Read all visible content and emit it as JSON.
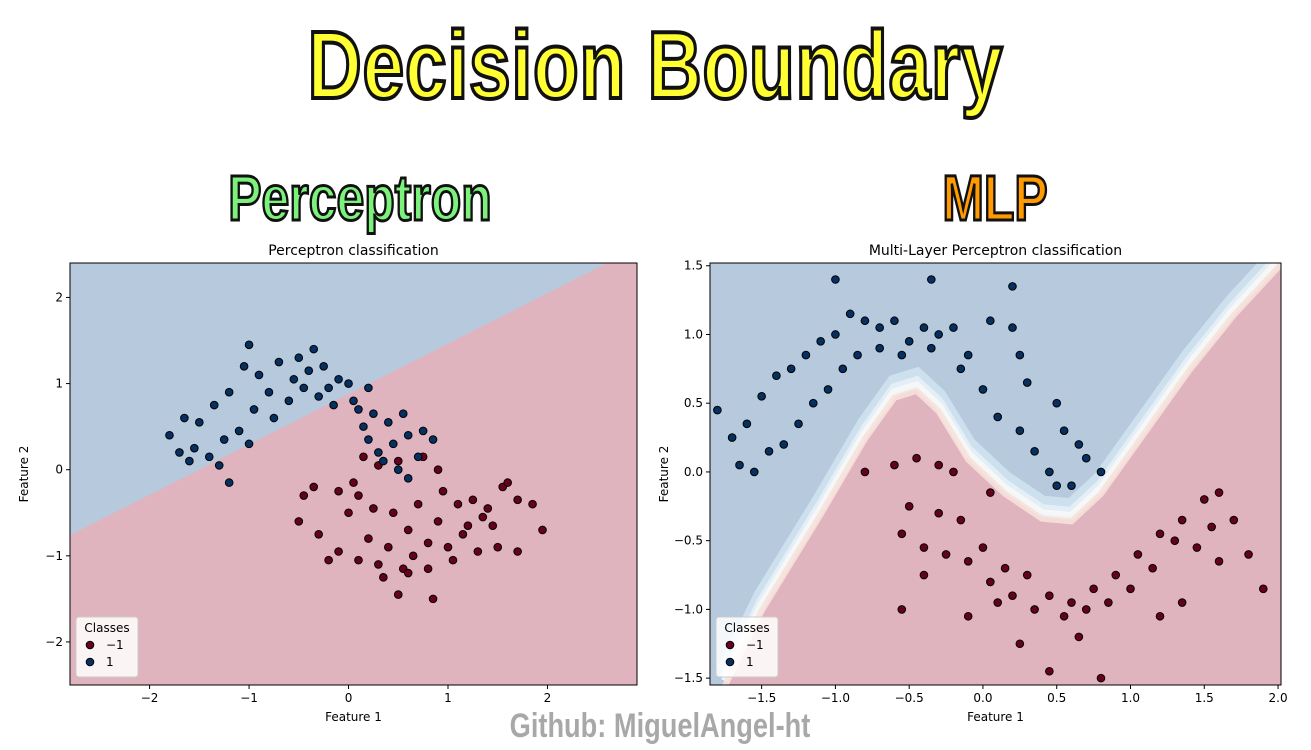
{
  "heading": "Decision Boundary",
  "left_label": "Perceptron",
  "right_label": "MLP",
  "footer": "Github: MiguelAngel-ht",
  "colors": {
    "class_neg": "#67001f",
    "class_pos": "#053061",
    "region_neg": "#e0b4be",
    "region_pos": "#b6c9dd",
    "title_fill": "#ffff33",
    "perceptron_fill": "#7cf27c",
    "mlp_fill": "#ff9a00"
  },
  "chart_data": [
    {
      "type": "scatter",
      "title": "Perceptron classification",
      "xlabel": "Feature 1",
      "ylabel": "Feature 2",
      "xlim": [
        -2.8,
        2.9
      ],
      "ylim": [
        -2.5,
        2.4
      ],
      "xticks": [
        -2,
        -1,
        0,
        1,
        2
      ],
      "yticks": [
        -2,
        -1,
        0,
        1,
        2
      ],
      "xtick_labels": [
        "−2",
        "−1",
        "0",
        "1",
        "2"
      ],
      "ytick_labels": [
        "−2",
        "−1",
        "0",
        "1",
        "2"
      ],
      "boundary_line": [
        [
          -2.8,
          -0.76
        ],
        [
          2.6,
          2.4
        ]
      ],
      "legend": {
        "title": "Classes",
        "position": "lower-left",
        "entries": [
          "−1",
          "1"
        ]
      },
      "grid": false,
      "series": [
        {
          "name": "−1",
          "points": [
            [
              0.15,
              0.15
            ],
            [
              0.3,
              0.05
            ],
            [
              0.5,
              0.1
            ],
            [
              0.75,
              0.15
            ],
            [
              0.9,
              0.0
            ],
            [
              -0.1,
              -0.25
            ],
            [
              0.1,
              -0.3
            ],
            [
              0.25,
              -0.45
            ],
            [
              0.45,
              -0.5
            ],
            [
              0.6,
              -0.7
            ],
            [
              0.8,
              -0.85
            ],
            [
              1.0,
              -0.9
            ],
            [
              1.2,
              -0.65
            ],
            [
              1.4,
              -0.45
            ],
            [
              1.55,
              -0.2
            ],
            [
              1.7,
              -0.35
            ],
            [
              1.85,
              -0.4
            ],
            [
              1.95,
              -0.7
            ],
            [
              1.7,
              -0.95
            ],
            [
              -0.5,
              -0.6
            ],
            [
              -0.3,
              -0.75
            ],
            [
              -0.1,
              -0.95
            ],
            [
              0.1,
              -1.05
            ],
            [
              0.3,
              -1.1
            ],
            [
              0.55,
              -1.15
            ],
            [
              0.8,
              -1.15
            ],
            [
              1.05,
              -1.05
            ],
            [
              1.3,
              -0.95
            ],
            [
              1.45,
              -0.65
            ],
            [
              -0.35,
              -0.2
            ],
            [
              0.0,
              -0.5
            ],
            [
              0.2,
              -0.8
            ],
            [
              0.4,
              -0.9
            ],
            [
              0.65,
              -1.0
            ],
            [
              0.9,
              -0.6
            ],
            [
              1.1,
              -0.4
            ],
            [
              1.25,
              -0.35
            ],
            [
              1.6,
              -0.15
            ],
            [
              1.5,
              -0.9
            ],
            [
              0.5,
              -1.45
            ],
            [
              0.85,
              -1.5
            ],
            [
              -0.2,
              -1.05
            ],
            [
              0.35,
              -1.25
            ],
            [
              0.6,
              -1.2
            ],
            [
              1.15,
              -0.75
            ],
            [
              1.35,
              -0.55
            ],
            [
              -0.45,
              -0.3
            ],
            [
              0.05,
              -0.15
            ],
            [
              0.7,
              -0.4
            ],
            [
              0.95,
              -0.25
            ]
          ]
        },
        {
          "name": "1",
          "points": [
            [
              -1.8,
              0.4
            ],
            [
              -1.65,
              0.6
            ],
            [
              -1.5,
              0.55
            ],
            [
              -1.35,
              0.75
            ],
            [
              -1.2,
              0.9
            ],
            [
              -1.05,
              1.2
            ],
            [
              -0.9,
              1.1
            ],
            [
              -0.7,
              1.25
            ],
            [
              -0.55,
              1.05
            ],
            [
              -0.4,
              1.15
            ],
            [
              -0.25,
              1.2
            ],
            [
              -0.1,
              1.05
            ],
            [
              0.0,
              1.0
            ],
            [
              0.2,
              0.95
            ],
            [
              -1.7,
              0.2
            ],
            [
              -1.55,
              0.25
            ],
            [
              -1.4,
              0.15
            ],
            [
              -1.25,
              0.35
            ],
            [
              -1.1,
              0.45
            ],
            [
              -0.95,
              0.7
            ],
            [
              -0.8,
              0.9
            ],
            [
              -0.6,
              0.8
            ],
            [
              -0.45,
              0.95
            ],
            [
              -0.3,
              0.85
            ],
            [
              -0.15,
              0.75
            ],
            [
              0.1,
              0.7
            ],
            [
              0.25,
              0.65
            ],
            [
              0.4,
              0.55
            ],
            [
              0.55,
              0.65
            ],
            [
              0.2,
              0.35
            ],
            [
              0.3,
              0.2
            ],
            [
              0.45,
              0.3
            ],
            [
              0.6,
              0.4
            ],
            [
              0.75,
              0.45
            ],
            [
              0.5,
              0.0
            ],
            [
              0.6,
              -0.1
            ],
            [
              0.35,
              0.1
            ],
            [
              0.15,
              0.5
            ],
            [
              0.7,
              0.15
            ],
            [
              0.85,
              0.35
            ],
            [
              -1.2,
              -0.15
            ],
            [
              -1.3,
              0.05
            ],
            [
              -1.6,
              0.1
            ],
            [
              -1.0,
              0.3
            ],
            [
              -0.75,
              0.6
            ],
            [
              -0.2,
              0.95
            ],
            [
              0.05,
              0.8
            ],
            [
              -0.5,
              1.3
            ],
            [
              -0.35,
              1.4
            ],
            [
              -1.0,
              1.45
            ]
          ]
        }
      ]
    },
    {
      "type": "scatter",
      "title": "Multi-Layer Perceptron classification",
      "xlabel": "Feature 1",
      "ylabel": "Feature 2",
      "xlim": [
        -1.85,
        2.02
      ],
      "ylim": [
        -1.55,
        1.52
      ],
      "xticks": [
        -1.5,
        -1.0,
        -0.5,
        0.0,
        0.5,
        1.0,
        1.5,
        2.0
      ],
      "yticks": [
        -1.5,
        -1.0,
        -0.5,
        0.0,
        0.5,
        1.0,
        1.5
      ],
      "xtick_labels": [
        "−1.5",
        "−1.0",
        "−0.5",
        "0.0",
        "0.5",
        "1.0",
        "1.5",
        "2.0"
      ],
      "ytick_labels": [
        "−1.5",
        "−1.0",
        "−0.5",
        "0.0",
        "0.5",
        "1.0",
        "1.5"
      ],
      "boundary_curve": [
        [
          -1.75,
          -1.55
        ],
        [
          -1.5,
          -1.0
        ],
        [
          -1.1,
          -0.3
        ],
        [
          -0.8,
          0.25
        ],
        [
          -0.6,
          0.55
        ],
        [
          -0.45,
          0.6
        ],
        [
          -0.3,
          0.45
        ],
        [
          -0.1,
          0.1
        ],
        [
          0.15,
          -0.15
        ],
        [
          0.4,
          -0.33
        ],
        [
          0.6,
          -0.35
        ],
        [
          0.8,
          -0.15
        ],
        [
          1.1,
          0.3
        ],
        [
          1.4,
          0.75
        ],
        [
          1.7,
          1.15
        ],
        [
          2.02,
          1.52
        ]
      ],
      "legend": {
        "title": "Classes",
        "position": "lower-left",
        "entries": [
          "−1",
          "1"
        ]
      },
      "grid": false,
      "series": [
        {
          "name": "−1",
          "points": [
            [
              -0.8,
              0.0
            ],
            [
              -0.6,
              0.05
            ],
            [
              -0.45,
              0.1
            ],
            [
              -0.3,
              0.05
            ],
            [
              -0.2,
              0.0
            ],
            [
              -0.5,
              -0.25
            ],
            [
              -0.3,
              -0.3
            ],
            [
              -0.15,
              -0.35
            ],
            [
              0.0,
              -0.55
            ],
            [
              0.15,
              -0.7
            ],
            [
              0.3,
              -0.75
            ],
            [
              0.45,
              -0.9
            ],
            [
              0.6,
              -0.95
            ],
            [
              0.75,
              -0.85
            ],
            [
              0.9,
              -0.75
            ],
            [
              1.05,
              -0.6
            ],
            [
              1.2,
              -0.45
            ],
            [
              1.35,
              -0.35
            ],
            [
              1.5,
              -0.2
            ],
            [
              1.6,
              -0.15
            ],
            [
              -0.55,
              -0.45
            ],
            [
              -0.4,
              -0.55
            ],
            [
              -0.25,
              -0.6
            ],
            [
              -0.1,
              -0.65
            ],
            [
              0.05,
              -0.8
            ],
            [
              0.2,
              -0.9
            ],
            [
              0.35,
              -1.0
            ],
            [
              0.55,
              -1.05
            ],
            [
              0.7,
              -1.0
            ],
            [
              0.85,
              -0.95
            ],
            [
              1.0,
              -0.85
            ],
            [
              1.15,
              -0.7
            ],
            [
              1.3,
              -0.5
            ],
            [
              1.45,
              -0.55
            ],
            [
              1.55,
              -0.4
            ],
            [
              1.7,
              -0.35
            ],
            [
              1.8,
              -0.6
            ],
            [
              1.9,
              -0.85
            ],
            [
              -0.55,
              -1.0
            ],
            [
              -0.1,
              -1.05
            ],
            [
              0.1,
              -0.95
            ],
            [
              0.25,
              -1.25
            ],
            [
              0.45,
              -1.45
            ],
            [
              0.65,
              -1.2
            ],
            [
              0.8,
              -1.5
            ],
            [
              1.2,
              -1.05
            ],
            [
              1.35,
              -0.95
            ],
            [
              1.6,
              -0.65
            ],
            [
              -0.4,
              -0.75
            ],
            [
              0.05,
              -0.15
            ]
          ]
        },
        {
          "name": "1",
          "points": [
            [
              -1.8,
              0.45
            ],
            [
              -1.7,
              0.25
            ],
            [
              -1.6,
              0.35
            ],
            [
              -1.5,
              0.55
            ],
            [
              -1.4,
              0.7
            ],
            [
              -1.3,
              0.75
            ],
            [
              -1.2,
              0.85
            ],
            [
              -1.1,
              0.95
            ],
            [
              -1.0,
              1.0
            ],
            [
              -0.9,
              1.15
            ],
            [
              -0.8,
              1.1
            ],
            [
              -0.7,
              1.05
            ],
            [
              -0.6,
              1.1
            ],
            [
              -0.5,
              0.95
            ],
            [
              -0.4,
              1.05
            ],
            [
              -0.3,
              1.0
            ],
            [
              -0.2,
              1.05
            ],
            [
              -0.1,
              0.85
            ],
            [
              0.05,
              1.1
            ],
            [
              0.2,
              1.05
            ],
            [
              -1.65,
              0.05
            ],
            [
              -1.55,
              0.0
            ],
            [
              -1.45,
              0.15
            ],
            [
              -1.35,
              0.2
            ],
            [
              -1.25,
              0.35
            ],
            [
              -1.15,
              0.5
            ],
            [
              -1.05,
              0.6
            ],
            [
              -0.95,
              0.75
            ],
            [
              -0.85,
              0.85
            ],
            [
              -0.7,
              0.9
            ],
            [
              -0.55,
              0.85
            ],
            [
              -0.35,
              0.9
            ],
            [
              -0.15,
              0.75
            ],
            [
              0.0,
              0.6
            ],
            [
              0.1,
              0.4
            ],
            [
              0.25,
              0.3
            ],
            [
              0.35,
              0.15
            ],
            [
              0.45,
              0.0
            ],
            [
              0.5,
              -0.1
            ],
            [
              0.6,
              -0.1
            ],
            [
              0.3,
              0.65
            ],
            [
              0.5,
              0.5
            ],
            [
              0.55,
              0.3
            ],
            [
              0.65,
              0.2
            ],
            [
              0.7,
              0.1
            ],
            [
              0.8,
              0.0
            ],
            [
              0.25,
              0.85
            ],
            [
              0.2,
              1.35
            ],
            [
              -1.0,
              1.4
            ],
            [
              -0.35,
              1.4
            ]
          ]
        }
      ]
    }
  ]
}
